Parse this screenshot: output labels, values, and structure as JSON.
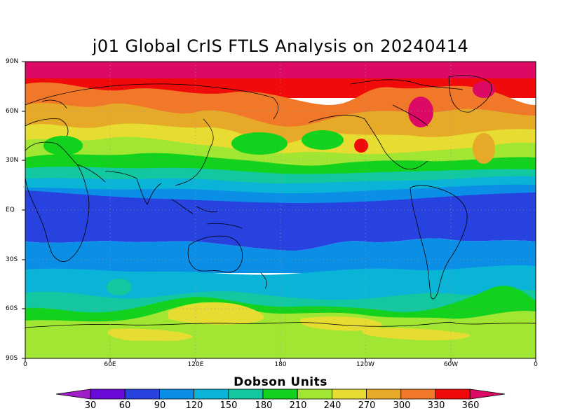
{
  "title": "j01 Global CrIS FTLS Analysis on 20240414",
  "map": {
    "lat_labels": [
      "90N",
      "60N",
      "30N",
      "EQ",
      "30S",
      "60S",
      "90S"
    ],
    "lon_labels": [
      "0",
      "60E",
      "120E",
      "180",
      "120W",
      "60W",
      "0"
    ],
    "grid": "dotted"
  },
  "colorbar": {
    "title": "Dobson Units",
    "levels": [
      "30",
      "60",
      "90",
      "120",
      "150",
      "180",
      "210",
      "240",
      "270",
      "300",
      "330",
      "360"
    ],
    "colors": [
      "#a020c8",
      "#6a0ad8",
      "#2842e0",
      "#0a8ee6",
      "#0ab4d6",
      "#12c8a0",
      "#12d21e",
      "#a0e632",
      "#e6dc32",
      "#e6aa28",
      "#f07828",
      "#f00a0a",
      "#dc0a64"
    ]
  }
}
